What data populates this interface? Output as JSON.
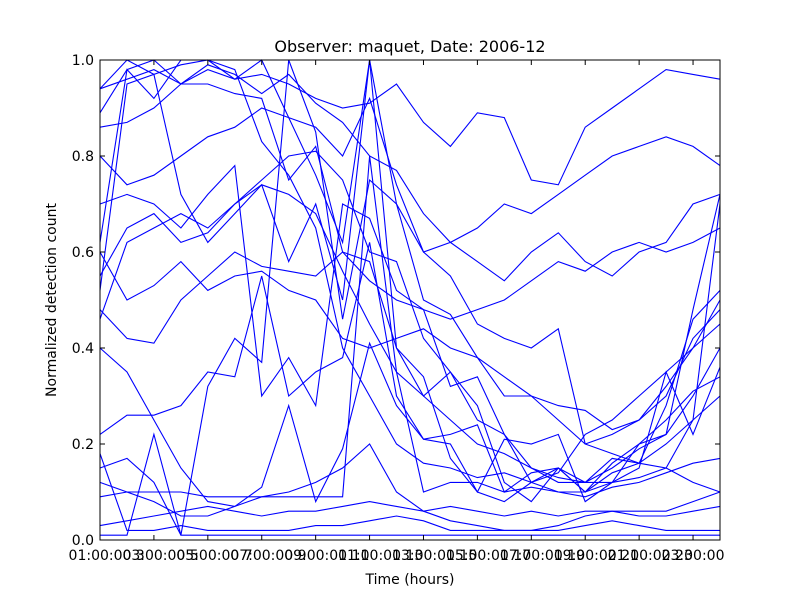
{
  "chart_data": {
    "type": "line",
    "title": "Observer: maquet, Date: 2006-12",
    "xlabel": "Time (hours)",
    "ylabel": "Normalized detection count",
    "ylim": [
      0,
      1
    ],
    "xlim": [
      1,
      24
    ],
    "x_tick_values": [
      1,
      3,
      5,
      7,
      9,
      11,
      13,
      15,
      17,
      19,
      21,
      23
    ],
    "x_tick_labels": [
      "01:00:00",
      "03:00:00",
      "05:00:00",
      "07:00:00",
      "09:00:00",
      "11:00:00",
      "13:00:00",
      "15:00:00",
      "17:00:00",
      "19:00:00",
      "21:00:00",
      "23:00:00"
    ],
    "x_minor_tick_labels": [
      "3",
      "5",
      "7",
      "9",
      "11",
      "13",
      "15",
      "17",
      "19",
      "21",
      "23"
    ],
    "y_ticks": [
      0.0,
      0.2,
      0.4,
      0.6,
      0.8,
      1.0
    ],
    "y_tick_labels": [
      "0.0",
      "0.2",
      "0.4",
      "0.6",
      "0.8",
      "1.0"
    ],
    "grid": false,
    "legend": "none",
    "line_color": "#0000ff",
    "x": [
      1,
      2,
      3,
      4,
      5,
      6,
      7,
      8,
      9,
      10,
      11,
      12,
      13,
      14,
      15,
      16,
      17,
      18,
      19,
      20,
      21,
      22,
      23,
      24
    ],
    "series": [
      {
        "values": [
          0.94,
          1.0,
          0.97,
          0.99,
          1.0,
          0.96,
          1.0,
          0.88,
          0.76,
          0.62,
          1.0,
          0.4,
          0.34,
          0.17,
          0.1,
          0.21,
          0.2,
          0.22,
          0.08,
          0.12,
          0.15,
          0.35,
          0.22,
          0.36
        ]
      },
      {
        "values": [
          0.86,
          0.87,
          0.9,
          0.95,
          0.95,
          0.93,
          0.92,
          0.75,
          0.82,
          0.6,
          0.58,
          0.4,
          0.3,
          0.35,
          0.28,
          0.12,
          0.08,
          0.15,
          0.1,
          0.14,
          0.16,
          0.28,
          0.46,
          0.52
        ]
      },
      {
        "values": [
          0.7,
          0.72,
          0.7,
          0.65,
          0.72,
          0.78,
          0.3,
          0.38,
          0.28,
          0.7,
          0.67,
          0.52,
          0.48,
          0.32,
          0.34,
          0.22,
          0.12,
          0.15,
          0.12,
          0.12,
          0.2,
          0.25,
          0.31,
          0.34
        ]
      },
      {
        "values": [
          0.6,
          0.5,
          0.53,
          0.58,
          0.52,
          0.55,
          0.56,
          0.52,
          0.5,
          0.42,
          0.4,
          0.42,
          0.44,
          0.4,
          0.38,
          0.3,
          0.3,
          0.25,
          0.2,
          0.22,
          0.25,
          0.3,
          0.42,
          0.48
        ]
      },
      {
        "values": [
          0.48,
          0.42,
          0.41,
          0.5,
          0.55,
          0.6,
          0.57,
          0.56,
          0.55,
          0.6,
          0.54,
          0.5,
          0.48,
          0.46,
          0.48,
          0.5,
          0.54,
          0.58,
          0.56,
          0.6,
          0.62,
          0.6,
          0.62,
          0.65
        ]
      },
      {
        "values": [
          0.22,
          0.26,
          0.26,
          0.28,
          0.35,
          0.34,
          0.55,
          0.3,
          0.35,
          0.38,
          0.62,
          0.3,
          0.21,
          0.22,
          0.24,
          0.1,
          0.14,
          0.15,
          0.1,
          0.16,
          0.2,
          0.22,
          0.48,
          0.72
        ]
      },
      {
        "values": [
          0.18,
          0.02,
          0.02,
          0.03,
          0.02,
          0.02,
          0.02,
          0.02,
          0.03,
          0.03,
          0.04,
          0.05,
          0.04,
          0.02,
          0.02,
          0.02,
          0.02,
          0.02,
          0.03,
          0.04,
          0.03,
          0.02,
          0.02,
          0.02
        ]
      },
      {
        "values": [
          0.09,
          0.1,
          0.1,
          0.1,
          0.09,
          0.09,
          0.09,
          0.09,
          0.09,
          0.09,
          0.8,
          0.35,
          0.1,
          0.12,
          0.12,
          0.1,
          0.11,
          0.1,
          0.1,
          0.12,
          0.13,
          0.15,
          0.12,
          0.1
        ]
      },
      {
        "values": [
          0.15,
          0.17,
          0.12,
          0.01,
          0.01,
          0.01,
          0.01,
          0.01,
          0.01,
          0.01,
          0.01,
          0.01,
          0.01,
          0.01,
          0.01,
          0.01,
          0.01,
          0.01,
          0.01,
          0.01,
          0.01,
          0.01,
          0.01,
          0.01
        ]
      },
      {
        "values": [
          0.03,
          0.04,
          0.05,
          0.06,
          0.07,
          0.06,
          0.05,
          0.06,
          0.06,
          0.07,
          0.08,
          0.07,
          0.06,
          0.07,
          0.06,
          0.05,
          0.06,
          0.05,
          0.06,
          0.06,
          0.05,
          0.05,
          0.06,
          0.07
        ]
      },
      {
        "values": [
          0.01,
          0.01,
          0.22,
          0.01,
          0.32,
          0.42,
          0.37,
          1.0,
          0.85,
          0.46,
          0.75,
          0.7,
          0.6,
          0.55,
          0.45,
          0.42,
          0.4,
          0.44,
          0.2,
          0.18,
          0.16,
          0.15,
          0.25,
          0.7
        ]
      },
      {
        "values": [
          0.55,
          0.65,
          0.68,
          0.62,
          0.64,
          0.7,
          0.74,
          0.72,
          0.68,
          0.56,
          0.45,
          0.35,
          0.3,
          0.25,
          0.2,
          0.18,
          0.15,
          0.12,
          0.12,
          0.17,
          0.16,
          0.2,
          0.25,
          0.3
        ]
      },
      {
        "values": [
          0.46,
          0.62,
          0.65,
          0.68,
          0.65,
          0.7,
          0.75,
          0.8,
          0.81,
          0.75,
          0.6,
          0.58,
          0.42,
          0.35,
          0.25,
          0.22,
          0.15,
          0.13,
          0.12,
          0.15,
          0.19,
          0.22,
          0.3,
          0.4
        ]
      },
      {
        "values": [
          0.8,
          0.74,
          0.76,
          0.8,
          0.84,
          0.86,
          0.9,
          0.88,
          0.86,
          0.8,
          0.92,
          0.74,
          0.6,
          0.62,
          0.58,
          0.54,
          0.6,
          0.64,
          0.58,
          0.55,
          0.6,
          0.62,
          0.7,
          0.72
        ]
      },
      {
        "values": [
          0.89,
          0.98,
          1.0,
          0.95,
          0.98,
          0.96,
          0.97,
          0.95,
          0.92,
          0.9,
          0.91,
          0.95,
          0.87,
          0.82,
          0.89,
          0.88,
          0.75,
          0.74,
          0.86,
          0.9,
          0.94,
          0.98,
          0.97,
          0.96
        ]
      },
      {
        "values": [
          0.4,
          0.35,
          0.25,
          0.15,
          0.08,
          0.07,
          0.11,
          0.28,
          0.08,
          0.19,
          0.41,
          0.28,
          0.21,
          0.2,
          0.1,
          0.08,
          0.12,
          0.14,
          0.22,
          0.25,
          0.3,
          0.35,
          0.4,
          0.45
        ]
      },
      {
        "values": [
          0.12,
          0.1,
          0.08,
          0.05,
          0.05,
          0.07,
          0.09,
          0.1,
          0.12,
          0.15,
          0.2,
          0.1,
          0.06,
          0.04,
          0.03,
          0.02,
          0.02,
          0.03,
          0.05,
          0.06,
          0.06,
          0.06,
          0.08,
          0.1
        ]
      },
      {
        "values": [
          0.62,
          0.98,
          0.92,
          1.0,
          1.0,
          0.98,
          0.83,
          0.76,
          0.65,
          0.4,
          0.3,
          0.2,
          0.16,
          0.15,
          0.13,
          0.14,
          0.12,
          0.1,
          0.09,
          0.11,
          0.12,
          0.14,
          0.16,
          0.17
        ]
      },
      {
        "values": [
          0.52,
          0.95,
          0.97,
          0.72,
          0.62,
          0.68,
          0.74,
          0.58,
          0.7,
          0.5,
          1.0,
          0.7,
          0.5,
          0.47,
          0.38,
          0.34,
          0.3,
          0.28,
          0.27,
          0.23,
          0.25,
          0.32,
          0.4,
          0.5
        ]
      },
      {
        "values": [
          0.94,
          0.96,
          0.98,
          0.95,
          0.99,
          0.97,
          0.93,
          0.97,
          0.91,
          0.87,
          0.8,
          0.77,
          0.68,
          0.62,
          0.65,
          0.7,
          0.68,
          0.72,
          0.76,
          0.8,
          0.82,
          0.84,
          0.82,
          0.78
        ]
      }
    ]
  }
}
